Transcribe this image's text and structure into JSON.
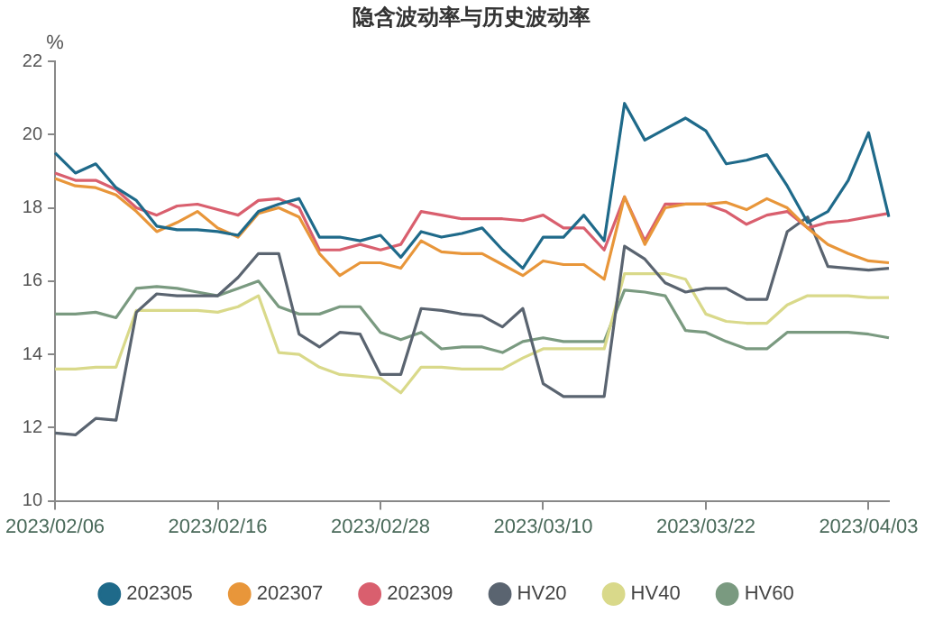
{
  "chart_data": {
    "type": "line",
    "title": "隐含波动率与历史波动率",
    "ylabel": "%",
    "categories": [
      "2023/02/06",
      null,
      null,
      null,
      null,
      null,
      null,
      null,
      "2023/02/16",
      null,
      null,
      null,
      null,
      null,
      null,
      null,
      "2023/02/28",
      null,
      null,
      null,
      null,
      null,
      null,
      null,
      "2023/03/10",
      null,
      null,
      null,
      null,
      null,
      null,
      null,
      "2023/03/22",
      null,
      null,
      null,
      null,
      null,
      null,
      null,
      "2023/04/03",
      null
    ],
    "ylim": [
      10,
      22
    ],
    "yticks": [
      10,
      12,
      14,
      16,
      18,
      20,
      22
    ],
    "grid": false,
    "legend": "bottom",
    "marker": "none",
    "line_style": "solid",
    "series": [
      {
        "name": "202305",
        "color": "#1f6a8a",
        "values": [
          19.5,
          18.95,
          19.2,
          18.55,
          18.2,
          17.5,
          17.4,
          17.4,
          17.35,
          17.25,
          17.9,
          18.1,
          18.25,
          17.2,
          17.2,
          17.1,
          17.25,
          16.65,
          17.35,
          17.2,
          17.3,
          17.45,
          16.85,
          16.35,
          17.2,
          17.2,
          17.8,
          17.1,
          20.85,
          19.85,
          20.15,
          20.45,
          20.1,
          19.2,
          19.3,
          19.45,
          18.6,
          17.6,
          17.9,
          18.75,
          20.05,
          17.75
        ]
      },
      {
        "name": "202307",
        "color": "#e8963a",
        "values": [
          18.8,
          18.6,
          18.55,
          18.35,
          17.9,
          17.35,
          17.6,
          17.9,
          17.45,
          17.2,
          17.85,
          18.0,
          17.75,
          16.75,
          16.15,
          16.5,
          16.5,
          16.35,
          17.1,
          16.8,
          16.75,
          16.75,
          16.45,
          16.15,
          16.55,
          16.45,
          16.45,
          16.05,
          18.3,
          17.0,
          18.0,
          18.1,
          18.1,
          18.15,
          17.95,
          18.25,
          18.0,
          17.45,
          17.0,
          16.75,
          16.55,
          16.5
        ]
      },
      {
        "name": "202309",
        "color": "#d95f6e",
        "values": [
          18.95,
          18.75,
          18.75,
          18.5,
          18.0,
          17.8,
          18.05,
          18.1,
          17.95,
          17.8,
          18.2,
          18.25,
          18.0,
          16.85,
          16.85,
          17.0,
          16.85,
          17.0,
          17.9,
          17.8,
          17.7,
          17.7,
          17.7,
          17.65,
          17.8,
          17.45,
          17.45,
          16.85,
          18.3,
          17.1,
          18.1,
          18.1,
          18.1,
          17.9,
          17.55,
          17.8,
          17.9,
          17.45,
          17.6,
          17.65,
          17.75,
          17.85
        ]
      },
      {
        "name": "HV20",
        "color": "#5a6470",
        "values": [
          11.85,
          11.8,
          12.25,
          12.2,
          15.15,
          15.65,
          15.6,
          15.6,
          15.6,
          16.1,
          16.75,
          16.75,
          14.55,
          14.2,
          14.6,
          14.55,
          13.45,
          13.45,
          15.25,
          15.2,
          15.1,
          15.05,
          14.75,
          15.25,
          13.2,
          12.85,
          12.85,
          12.85,
          16.95,
          16.6,
          15.95,
          15.7,
          15.8,
          15.8,
          15.5,
          15.5,
          17.35,
          17.75,
          16.4,
          16.35,
          16.3,
          16.35
        ]
      },
      {
        "name": "HV40",
        "color": "#d9d98a",
        "values": [
          13.6,
          13.6,
          13.65,
          13.65,
          15.2,
          15.2,
          15.2,
          15.2,
          15.15,
          15.3,
          15.6,
          14.05,
          14.0,
          13.65,
          13.45,
          13.4,
          13.35,
          12.95,
          13.65,
          13.65,
          13.6,
          13.6,
          13.6,
          13.9,
          14.15,
          14.15,
          14.15,
          14.15,
          16.2,
          16.2,
          16.2,
          16.05,
          15.1,
          14.9,
          14.85,
          14.85,
          15.35,
          15.6,
          15.6,
          15.6,
          15.55,
          15.55
        ]
      },
      {
        "name": "HV60",
        "color": "#7a9a80",
        "values": [
          15.1,
          15.1,
          15.15,
          15.0,
          15.8,
          15.85,
          15.8,
          15.7,
          15.6,
          15.8,
          16.0,
          15.3,
          15.1,
          15.1,
          15.3,
          15.3,
          14.6,
          14.4,
          14.6,
          14.15,
          14.2,
          14.2,
          14.05,
          14.35,
          14.45,
          14.35,
          14.35,
          14.35,
          15.75,
          15.7,
          15.6,
          14.65,
          14.6,
          14.35,
          14.15,
          14.15,
          14.6,
          14.6,
          14.6,
          14.6,
          14.55,
          14.45
        ]
      }
    ]
  }
}
